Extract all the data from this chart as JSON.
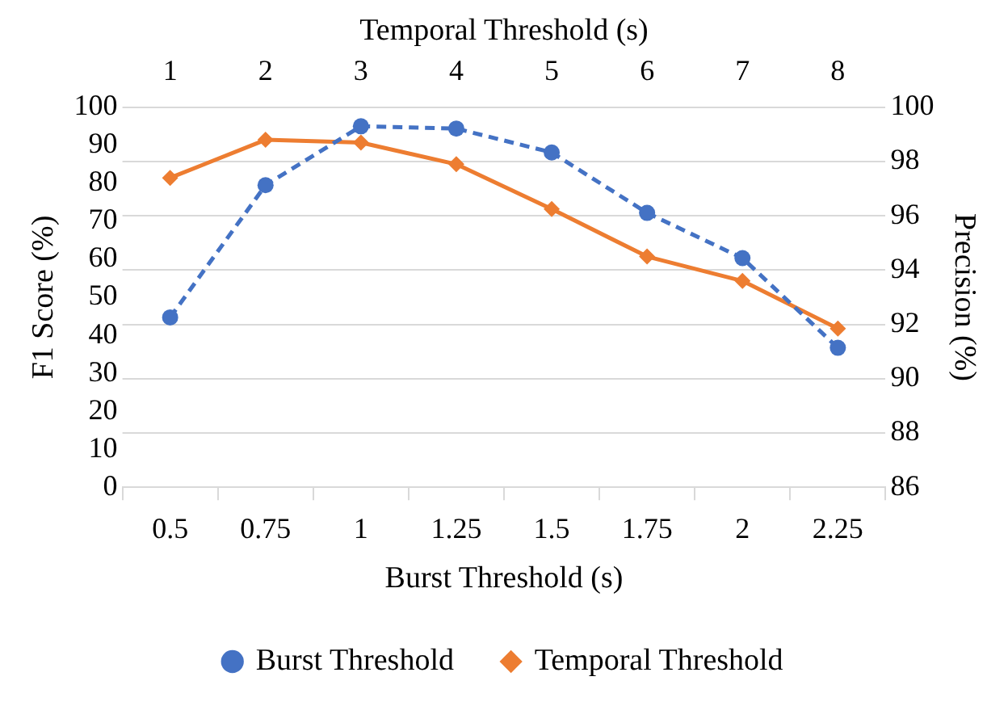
{
  "chart_data": {
    "type": "line",
    "xlabel": "Burst Threshold (s)",
    "ylabel": "F1 Score (%)",
    "y2label": "Precision (%)",
    "x2label": "Temporal Threshold (s)",
    "categories": [
      "0.5",
      "0.75",
      "1",
      "1.25",
      "1.5",
      "1.75",
      "2",
      "2.25"
    ],
    "series": [
      {
        "name": "Burst Threshold",
        "color": "#4472c4",
        "marker": "circle",
        "line_style": "dashed",
        "axis": "y",
        "values": [
          44.7,
          79.5,
          95,
          94.4,
          88.1,
          72.2,
          60.3,
          36.7
        ]
      },
      {
        "name": "Temporal Threshold",
        "color": "#ed7d31",
        "marker": "diamond",
        "line_style": "solid",
        "axis": "y2",
        "values": [
          97.4,
          98.8,
          98.7,
          97.9,
          96.25,
          94.5,
          93.6,
          91.85
        ]
      }
    ],
    "ylim": [
      0,
      100
    ],
    "yticks": [
      0,
      10,
      20,
      30,
      40,
      50,
      60,
      70,
      80,
      90,
      100
    ],
    "y2lim": [
      86,
      100
    ],
    "y2ticks": [
      86,
      88,
      90,
      92,
      94,
      96,
      98,
      100
    ],
    "x2lim": [
      0.5,
      8.5
    ],
    "x2ticks": [
      1,
      2,
      3,
      4,
      5,
      6,
      7,
      8
    ],
    "grid": "y",
    "legend": "bottom"
  }
}
